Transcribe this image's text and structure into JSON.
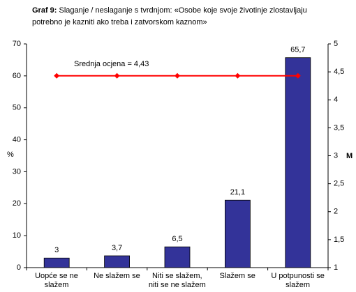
{
  "chart_data": {
    "type": "bar",
    "title": "Graf 9:",
    "subtitle": "Slaganje / neslaganje s tvrdnjom: «Osobe koje svoje životinje zlostavljaju potrebno je kazniti ako treba i zatvorskom kaznom»",
    "y_label": "%",
    "y2_label": "M",
    "annotation": "Srednja ocjena = 4,43",
    "categories": [
      "Uopće se ne slažem",
      "Ne slažem se",
      "Niti se slažem, niti se ne slažem",
      "Slažem se",
      "U potpunosti se slažem"
    ],
    "series": [
      {
        "type": "bar",
        "color": "#333399",
        "values": [
          3,
          3.7,
          6.5,
          21.1,
          65.7
        ],
        "value_labels": [
          "3",
          "3,7",
          "6,5",
          "21,1",
          "65,7"
        ]
      },
      {
        "type": "line",
        "color": "#ff0000",
        "axis": "y2",
        "values": [
          4.43,
          4.43,
          4.43,
          4.43,
          4.43
        ]
      }
    ],
    "ylim": [
      0,
      70
    ],
    "yticks": [
      0,
      10,
      20,
      30,
      40,
      50,
      60,
      70
    ],
    "y2lim": [
      1,
      5
    ],
    "y2ticks": [
      1,
      {
        "value": 1.5,
        "label": "1,5"
      },
      2,
      {
        "value": 2.5,
        "label": "2,5"
      },
      3,
      {
        "value": 3.5,
        "label": "3,5"
      },
      4,
      {
        "value": 4.5,
        "label": "4,5"
      },
      5
    ],
    "grid": false
  }
}
